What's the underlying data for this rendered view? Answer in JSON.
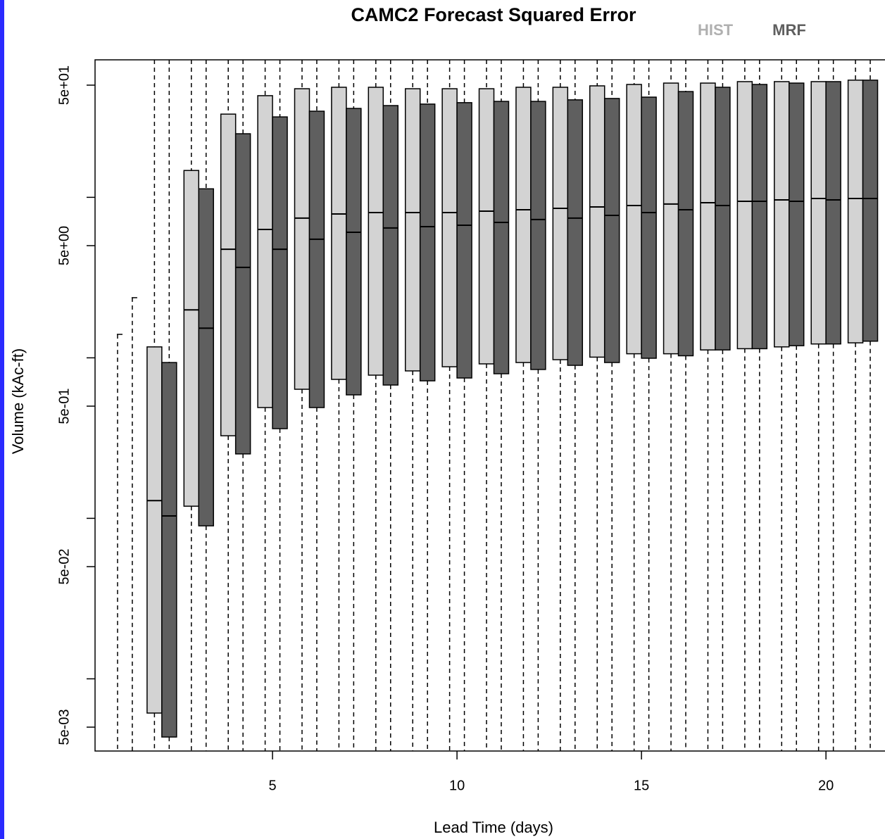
{
  "chart_data": {
    "type": "box",
    "title": "CAMC2 Forecast Squared Error",
    "x_label": "Lead Time (days)",
    "y_label": "Volume (kAc-ft)",
    "x": [
      1,
      2,
      3,
      4,
      5,
      6,
      7,
      8,
      9,
      10,
      11,
      12,
      13,
      14,
      15,
      16,
      17,
      18,
      19,
      20,
      21
    ],
    "xlim": [
      0.19,
      21.6
    ],
    "xticks": [
      5,
      10,
      15,
      20
    ],
    "ylim": [
      0.00355,
      71.9
    ],
    "log_y": true,
    "yticks": [
      {
        "value": 0.005,
        "label": "5e-03"
      },
      {
        "value": 0.05,
        "label": "5e-02"
      },
      {
        "value": 0.5,
        "label": "5e-01"
      },
      {
        "value": 5,
        "label": "5e+00"
      },
      {
        "value": 50,
        "label": "5e+01"
      }
    ],
    "yminor_ticks": [
      0.01,
      0.1,
      1,
      10
    ],
    "series": [
      {
        "name": "HIST",
        "color": "#d3d3d3",
        "q3": [
          null,
          1.17,
          14.7,
          33.0,
          43.0,
          47.5,
          48.5,
          48.5,
          47.5,
          47.5,
          47.5,
          48.5,
          48.5,
          49.5,
          50.5,
          51.5,
          51.5,
          52.6,
          52.6,
          52.6,
          53.7
        ],
        "median": [
          null,
          0.129,
          1.99,
          4.75,
          6.31,
          7.42,
          7.88,
          8.04,
          8.04,
          8.04,
          8.2,
          8.37,
          8.54,
          8.71,
          8.89,
          9.08,
          9.26,
          9.45,
          9.64,
          9.84,
          9.84
        ],
        "q1": [
          null,
          0.00612,
          0.119,
          0.327,
          0.49,
          0.637,
          0.734,
          0.78,
          0.829,
          0.88,
          0.917,
          0.935,
          0.974,
          1.01,
          1.06,
          1.06,
          1.12,
          1.14,
          1.17,
          1.22,
          1.24
        ],
        "whisker_high": [
          1.4,
          null,
          null,
          null,
          null,
          null,
          null,
          null,
          null,
          null,
          null,
          null,
          null,
          null,
          null,
          null,
          null,
          null,
          null,
          null,
          null
        ]
      },
      {
        "name": "MRF",
        "color": "#5f5f5f",
        "q3": [
          null,
          0.935,
          11.3,
          24.9,
          31.7,
          34.4,
          35.8,
          37.3,
          38.1,
          38.9,
          39.6,
          39.6,
          40.5,
          41.3,
          42.1,
          45.6,
          48.5,
          50.5,
          51.5,
          52.6,
          53.7
        ],
        "median": [
          null,
          0.1035,
          1.53,
          3.66,
          4.75,
          5.48,
          6.06,
          6.44,
          6.57,
          6.7,
          6.98,
          7.27,
          7.42,
          7.72,
          8.04,
          8.37,
          8.89,
          9.45,
          9.45,
          9.64,
          9.84
        ],
        "q1": [
          null,
          0.00434,
          0.0898,
          0.252,
          0.362,
          0.49,
          0.588,
          0.677,
          0.719,
          0.749,
          0.796,
          0.846,
          0.898,
          0.935,
          0.994,
          1.03,
          1.12,
          1.14,
          1.19,
          1.22,
          1.27
        ],
        "whisker_high": [
          2.37,
          null,
          null,
          null,
          null,
          null,
          null,
          null,
          null,
          null,
          null,
          null,
          null,
          null,
          null,
          null,
          null,
          null,
          null,
          null,
          null
        ]
      }
    ]
  }
}
